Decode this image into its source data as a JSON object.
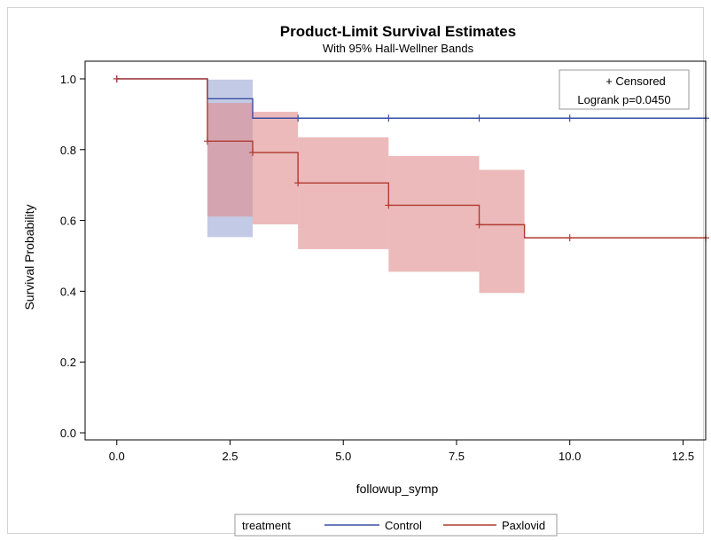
{
  "chart_data": {
    "type": "line",
    "title": "Product-Limit Survival Estimates",
    "subtitle": "With 95% Hall-Wellner Bands",
    "xlabel": "followup_symp",
    "ylabel": "Survival Probability",
    "xlim": [
      -0.7,
      13.0
    ],
    "ylim": [
      -0.02,
      1.05
    ],
    "xticks": [
      0.0,
      2.5,
      5.0,
      7.5,
      10.0,
      12.5
    ],
    "xtick_labels": [
      "0.0",
      "2.5",
      "5.0",
      "7.5",
      "10.0",
      "12.5"
    ],
    "yticks": [
      0.0,
      0.2,
      0.4,
      0.6,
      0.8,
      1.0
    ],
    "ytick_labels": [
      "0.0",
      "0.2",
      "0.4",
      "0.6",
      "0.8",
      "1.0"
    ],
    "grid": false,
    "inset": {
      "censored_label": "+ Censored",
      "logrank_label": "Logrank p=0.0450",
      "position": "top-right"
    },
    "legend": {
      "title": "treatment",
      "position": "bottom",
      "entries": [
        "Control",
        "Paxlovid"
      ]
    },
    "series": [
      {
        "name": "Control",
        "color": "#3a4fa3",
        "band_color": "#9aa6d6",
        "steps": [
          {
            "x0": 0,
            "x1": 2,
            "y": 1.0
          },
          {
            "x0": 2,
            "x1": 3,
            "y": 0.944
          },
          {
            "x0": 3,
            "x1": 13,
            "y": 0.889
          }
        ],
        "band": [
          {
            "x0": 2,
            "x1": 3,
            "lower": 0.553,
            "upper": 0.998
          }
        ],
        "censored": [
          {
            "x": 0,
            "y": 1.0
          },
          {
            "x": 4,
            "y": 0.889
          },
          {
            "x": 6,
            "y": 0.889
          },
          {
            "x": 8,
            "y": 0.889
          },
          {
            "x": 10,
            "y": 0.889
          },
          {
            "x": 13,
            "y": 0.889
          }
        ]
      },
      {
        "name": "Paxlovid",
        "color": "#b03a32",
        "band_color": "#e08c8c",
        "steps": [
          {
            "x0": 0,
            "x1": 2,
            "y": 1.0
          },
          {
            "x0": 2,
            "x1": 3,
            "y": 0.824
          },
          {
            "x0": 3,
            "x1": 4,
            "y": 0.792
          },
          {
            "x0": 4,
            "x1": 6,
            "y": 0.706
          },
          {
            "x0": 6,
            "x1": 8,
            "y": 0.643
          },
          {
            "x0": 8,
            "x1": 9,
            "y": 0.588
          },
          {
            "x0": 9,
            "x1": 13,
            "y": 0.551
          }
        ],
        "band": [
          {
            "x0": 2,
            "x1": 3,
            "lower": 0.611,
            "upper": 0.932
          },
          {
            "x0": 3,
            "x1": 4,
            "lower": 0.589,
            "upper": 0.907
          },
          {
            "x0": 4,
            "x1": 6,
            "lower": 0.519,
            "upper": 0.835
          },
          {
            "x0": 6,
            "x1": 8,
            "lower": 0.455,
            "upper": 0.782
          },
          {
            "x0": 8,
            "x1": 9,
            "lower": 0.395,
            "upper": 0.743
          }
        ],
        "censored": [
          {
            "x": 0,
            "y": 1.0
          },
          {
            "x": 2,
            "y": 0.824
          },
          {
            "x": 3,
            "y": 0.792
          },
          {
            "x": 4,
            "y": 0.706
          },
          {
            "x": 6,
            "y": 0.643
          },
          {
            "x": 8,
            "y": 0.588
          },
          {
            "x": 10,
            "y": 0.551
          },
          {
            "x": 13,
            "y": 0.551
          }
        ]
      }
    ]
  }
}
